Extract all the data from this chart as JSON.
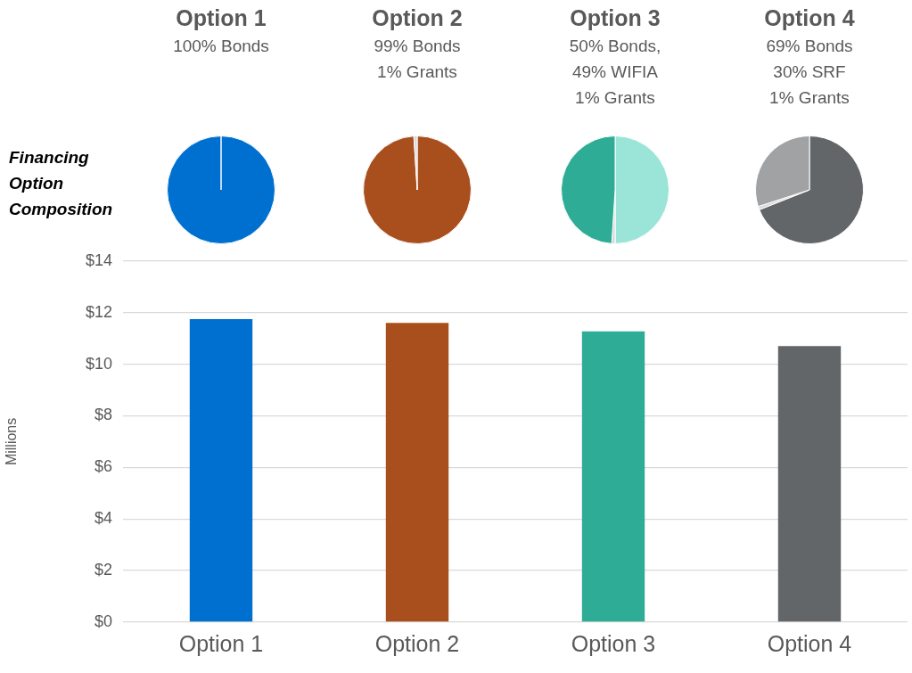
{
  "chart_data": [
    {
      "type": "other",
      "title": "Financing Option Composition"
    },
    {
      "type": "pie",
      "title": "Option 1",
      "subtitle": "100% Bonds",
      "categories": [
        null
      ],
      "values": [
        100
      ],
      "colors": [
        "#0070d0"
      ]
    },
    {
      "type": "pie",
      "title": "Option 2",
      "subtitle": "99% Bonds\n1% Grants",
      "categories": [
        null,
        null
      ],
      "values": [
        99,
        1
      ],
      "colors": [
        "#a94f1e",
        "#d9d9d9"
      ]
    },
    {
      "type": "pie",
      "title": "Option 3",
      "subtitle": "50% Bonds,\n49% WIFIA\n1% Grants",
      "categories": [
        null,
        null,
        null
      ],
      "values": [
        50,
        1,
        49
      ],
      "colors": [
        "#9be5d8",
        "#d9d9d9",
        "#2eac96"
      ]
    },
    {
      "type": "pie",
      "title": "Option 4",
      "subtitle": "69% Bonds\n30% SRF\n1% Grants",
      "categories": [
        null,
        null,
        null
      ],
      "values": [
        69,
        1,
        30
      ],
      "colors": [
        "#636668",
        "#d9d9d9",
        "#a0a2a4"
      ]
    },
    {
      "type": "bar",
      "ylabel": "Millions",
      "categories": [
        "Option 1",
        "Option 2",
        "Option 3",
        "Option 4"
      ],
      "values": [
        11.75,
        11.6,
        11.27,
        10.7
      ],
      "colors": [
        "#0070d0",
        "#a94f1e",
        "#2eac96",
        "#636668"
      ],
      "ylim": [
        0,
        14
      ],
      "yticks": [
        {
          "value": 0,
          "label": "$0"
        },
        {
          "value": 2,
          "label": "$2"
        },
        {
          "value": 4,
          "label": "$4"
        },
        {
          "value": 6,
          "label": "$6"
        },
        {
          "value": 8,
          "label": "$8"
        },
        {
          "value": 10,
          "label": "$10"
        },
        {
          "value": 12,
          "label": "$12"
        },
        {
          "value": 14,
          "label": "$14"
        }
      ],
      "grid": "y"
    }
  ]
}
